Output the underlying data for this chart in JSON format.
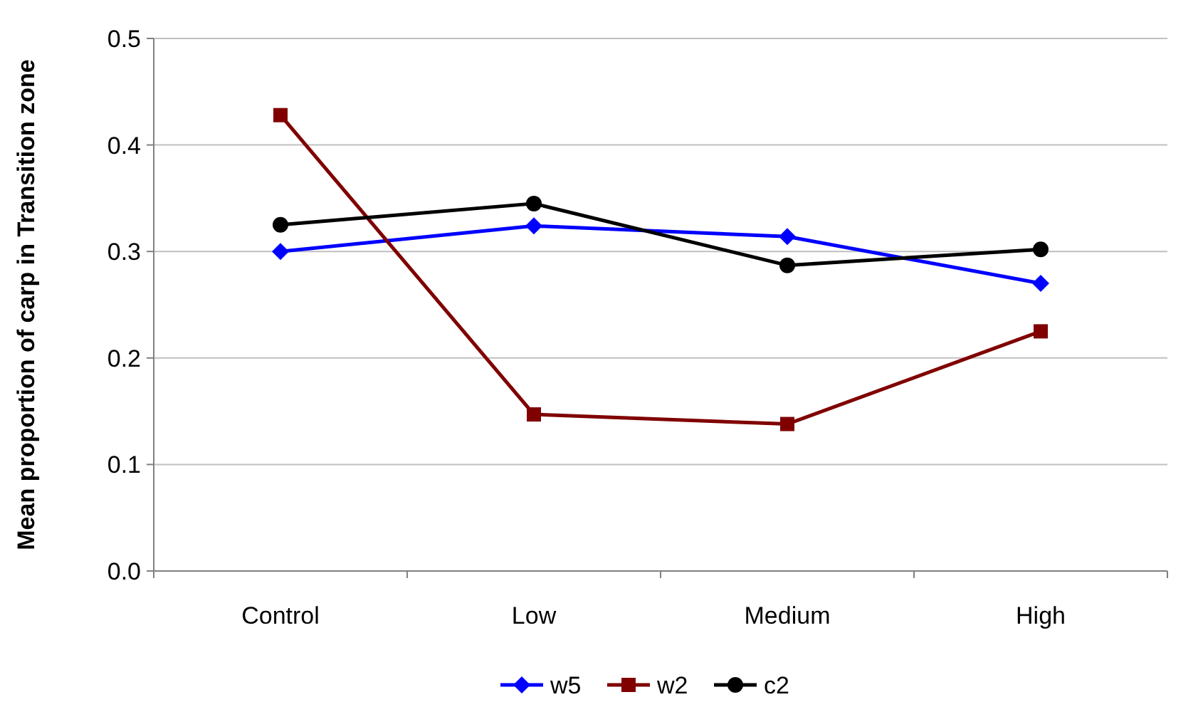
{
  "chart_data": {
    "type": "line",
    "ylabel": "Mean proportion of carp in Transition zone",
    "categories": [
      "Control",
      "Low",
      "Medium",
      "High"
    ],
    "series": [
      {
        "name": "w5",
        "color": "#0000ff",
        "marker": "diamond",
        "values": [
          0.3,
          0.324,
          0.314,
          0.27
        ]
      },
      {
        "name": "w2",
        "color": "#800000",
        "marker": "square",
        "values": [
          0.428,
          0.147,
          0.138,
          0.225
        ]
      },
      {
        "name": "c2",
        "color": "#000000",
        "marker": "circle",
        "values": [
          0.325,
          0.345,
          0.287,
          0.302
        ]
      }
    ],
    "ylim": [
      0,
      0.5
    ],
    "yticks": [
      {
        "value": 0,
        "label": "0.0"
      },
      {
        "value": 0.1,
        "label": "0.1"
      },
      {
        "value": 0.2,
        "label": "0.2"
      },
      {
        "value": 0.3,
        "label": "0.3"
      },
      {
        "value": 0.4,
        "label": "0.4"
      },
      {
        "value": 0.5,
        "label": "0.5"
      }
    ],
    "grid": "y",
    "legend": "bottom",
    "line_style": "solid"
  }
}
